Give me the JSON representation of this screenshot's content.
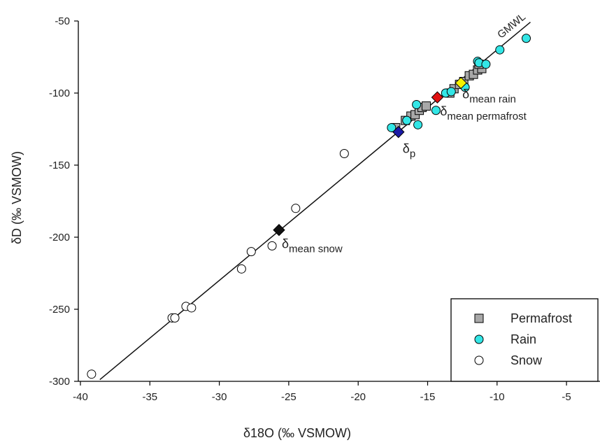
{
  "chart_data": {
    "type": "scatter",
    "xlabel": "δ18O (‰ VSMOW)",
    "ylabel": "δD (‰ VSMOW)",
    "xlim": [
      -40,
      -4
    ],
    "ylim": [
      -300,
      -45
    ],
    "xticks": [
      -40,
      -35,
      -30,
      -25,
      -20,
      -15,
      -10,
      -5
    ],
    "yticks": [
      -300,
      -250,
      -200,
      -150,
      -100,
      -50
    ],
    "grid": false,
    "legend_position": "bottom-right",
    "series": [
      {
        "name": "Permafrost",
        "marker": "square",
        "color": "#a8a8a8",
        "points": [
          [
            -17.3,
            -124
          ],
          [
            -16.6,
            -119
          ],
          [
            -16.2,
            -116
          ],
          [
            -15.9,
            -115
          ],
          [
            -15.6,
            -112
          ],
          [
            -15.4,
            -110
          ],
          [
            -15.1,
            -109
          ],
          [
            -13.4,
            -100
          ],
          [
            -13.1,
            -97
          ],
          [
            -12.7,
            -94
          ],
          [
            -12.4,
            -92
          ],
          [
            -12.0,
            -88
          ],
          [
            -11.7,
            -87
          ],
          [
            -11.4,
            -84
          ],
          [
            -11.1,
            -83
          ],
          [
            -11.3,
            -80
          ]
        ]
      },
      {
        "name": "Rain",
        "marker": "circle",
        "color": "#33e6e6",
        "points": [
          [
            -17.6,
            -124
          ],
          [
            -16.5,
            -119
          ],
          [
            -15.8,
            -108
          ],
          [
            -15.7,
            -122
          ],
          [
            -14.4,
            -112
          ],
          [
            -13.7,
            -100
          ],
          [
            -13.3,
            -99
          ],
          [
            -12.3,
            -96
          ],
          [
            -11.4,
            -78
          ],
          [
            -11.3,
            -79
          ],
          [
            -10.8,
            -80
          ],
          [
            -9.8,
            -70
          ],
          [
            -7.9,
            -62
          ]
        ]
      },
      {
        "name": "Snow",
        "marker": "circle",
        "color": "#ffffff",
        "points": [
          [
            -39.2,
            -295
          ],
          [
            -33.4,
            -256
          ],
          [
            -33.2,
            -256
          ],
          [
            -32.4,
            -248
          ],
          [
            -32.0,
            -249
          ],
          [
            -28.4,
            -222
          ],
          [
            -27.7,
            -210
          ],
          [
            -26.2,
            -206
          ],
          [
            -24.5,
            -180
          ],
          [
            -21.0,
            -142
          ]
        ]
      }
    ],
    "line": {
      "label": "GMWL",
      "slope": 8,
      "intercept": 10,
      "x_range": [
        -38.6,
        -7.6
      ]
    },
    "highlight_points": [
      {
        "label_main": "δ",
        "label_sub": "mean snow",
        "x": -25.7,
        "y": -195,
        "color": "#111111"
      },
      {
        "label_main": "δ",
        "label_sub": "mean permafrost",
        "x": -14.3,
        "y": -103,
        "color": "#e01010"
      },
      {
        "label_main": "δ",
        "label_sub": "mean rain",
        "x": -12.6,
        "y": -93,
        "color": "#f5f200"
      },
      {
        "label_main": "δ",
        "label_sub": "p",
        "x": -17.1,
        "y": -127,
        "color": "#1a1aa6"
      }
    ]
  }
}
